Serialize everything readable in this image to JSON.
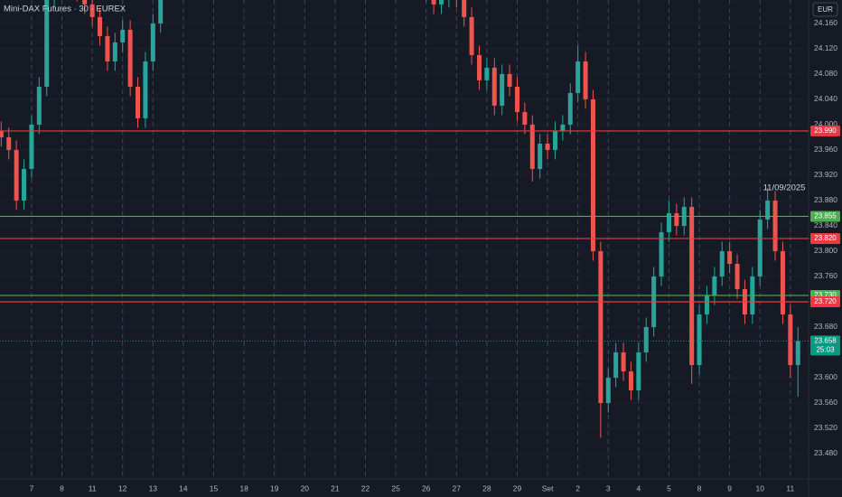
{
  "chart_data": {
    "type": "candlestick",
    "title": "Mini-DAX Futures · 30 · EUREX",
    "currency": "EUR",
    "annotation": "11/09/2025",
    "xlim": [
      -1.04,
      25.6
    ],
    "ylim": [
      23440,
      24197
    ],
    "xticks": [
      {
        "value": 0,
        "label": "7"
      },
      {
        "value": 1,
        "label": "8"
      },
      {
        "value": 2,
        "label": "11"
      },
      {
        "value": 3,
        "label": "12"
      },
      {
        "value": 4,
        "label": "13"
      },
      {
        "value": 5,
        "label": "14"
      },
      {
        "value": 6,
        "label": "15"
      },
      {
        "value": 7,
        "label": "18"
      },
      {
        "value": 8,
        "label": "19"
      },
      {
        "value": 9,
        "label": "20"
      },
      {
        "value": 10,
        "label": "21"
      },
      {
        "value": 11,
        "label": "22"
      },
      {
        "value": 12,
        "label": "25"
      },
      {
        "value": 13,
        "label": "26"
      },
      {
        "value": 14,
        "label": "27"
      },
      {
        "value": 15,
        "label": "28"
      },
      {
        "value": 16,
        "label": "29"
      },
      {
        "value": 17,
        "label": "Set"
      },
      {
        "value": 18,
        "label": "2"
      },
      {
        "value": 19,
        "label": "3"
      },
      {
        "value": 20,
        "label": "4"
      },
      {
        "value": 21,
        "label": "5"
      },
      {
        "value": 22,
        "label": "8"
      },
      {
        "value": 23,
        "label": "9"
      },
      {
        "value": 24,
        "label": "10"
      },
      {
        "value": 25,
        "label": "11"
      }
    ],
    "yticks": [
      {
        "value": 24160,
        "label": "24.160"
      },
      {
        "value": 24120,
        "label": "24.120"
      },
      {
        "value": 24080,
        "label": "24.080"
      },
      {
        "value": 24040,
        "label": "24.040"
      },
      {
        "value": 24000,
        "label": "24.000"
      },
      {
        "value": 23960,
        "label": "23.960"
      },
      {
        "value": 23920,
        "label": "23.920"
      },
      {
        "value": 23880,
        "label": "23.880"
      },
      {
        "value": 23840,
        "label": "23.840"
      },
      {
        "value": 23800,
        "label": "23.800"
      },
      {
        "value": 23760,
        "label": "23.760"
      },
      {
        "value": 23720,
        "label": "23.720"
      },
      {
        "value": 23680,
        "label": "23.680"
      },
      {
        "value": 23640,
        "label": "23.640"
      },
      {
        "value": 23600,
        "label": "23.600"
      },
      {
        "value": 23560,
        "label": "23.560"
      },
      {
        "value": 23520,
        "label": "23.520"
      },
      {
        "value": 23480,
        "label": "23.480"
      }
    ],
    "up_color": "#26a69a",
    "down_color": "#ef5350",
    "x": [
      -1,
      -0.75,
      -0.5,
      -0.25,
      0,
      0.25,
      0.5,
      0.75,
      1,
      1.25,
      1.5,
      1.75,
      2,
      2.25,
      2.5,
      2.75,
      3,
      3.25,
      3.5,
      3.75,
      4,
      4.25,
      13,
      13.25,
      13.5,
      13.75,
      14,
      14.25,
      14.5,
      14.75,
      15,
      15.25,
      15.5,
      15.75,
      16,
      16.25,
      16.5,
      16.75,
      17,
      17.25,
      17.5,
      17.75,
      18,
      18.25,
      18.5,
      18.75,
      19,
      19.25,
      19.5,
      19.75,
      20,
      20.25,
      20.5,
      20.75,
      21,
      21.25,
      21.5,
      21.75,
      22,
      22.25,
      22.5,
      22.75,
      23,
      23.25,
      23.5,
      23.75,
      24,
      24.25,
      24.5,
      24.75,
      25,
      25.25
    ],
    "open": [
      23990,
      23980,
      23960,
      23880,
      23930,
      24000,
      24060,
      24200,
      24230,
      24250,
      24220,
      24210,
      24190,
      24170,
      24140,
      24100,
      24130,
      24150,
      24060,
      24010,
      24100,
      24160,
      24210,
      24230,
      24190,
      24200,
      24240,
      24200,
      24170,
      24110,
      24070,
      24090,
      24030,
      24080,
      24060,
      24020,
      24000,
      23930,
      23970,
      23960,
      23990,
      24000,
      24050,
      24100,
      24040,
      23800,
      23560,
      23600,
      23640,
      23610,
      23580,
      23640,
      23680,
      23760,
      23830,
      23860,
      23840,
      23870,
      23620,
      23700,
      23730,
      23760,
      23800,
      23780,
      23740,
      23700,
      23760,
      23850,
      23880,
      23800,
      23700,
      23620
    ],
    "high": [
      24005,
      23995,
      23975,
      23945,
      24015,
      24075,
      24215,
      24245,
      24265,
      24265,
      24235,
      24225,
      24205,
      24185,
      24155,
      24145,
      24165,
      24165,
      24075,
      24115,
      24175,
      24235,
      24245,
      24245,
      24215,
      24255,
      24255,
      24215,
      24185,
      24125,
      24105,
      24105,
      24095,
      24095,
      24075,
      24035,
      24015,
      23985,
      23985,
      24005,
      24015,
      24065,
      24125,
      24115,
      24055,
      23815,
      23615,
      23655,
      23655,
      23625,
      23655,
      23695,
      23775,
      23845,
      23880,
      23875,
      23885,
      23885,
      23715,
      23745,
      23775,
      23815,
      23815,
      23795,
      23755,
      23775,
      23865,
      23900,
      23895,
      23815,
      23715,
      23680
    ],
    "low": [
      23965,
      23945,
      23865,
      23865,
      23915,
      23985,
      24045,
      24185,
      24215,
      24205,
      24195,
      24175,
      24155,
      24125,
      24085,
      24085,
      24115,
      24045,
      23995,
      23995,
      24085,
      24145,
      24195,
      24175,
      24175,
      24185,
      24185,
      24155,
      24095,
      24055,
      24055,
      24015,
      24015,
      24045,
      24005,
      23985,
      23910,
      23915,
      23945,
      23945,
      23975,
      23985,
      24035,
      24025,
      23785,
      23505,
      23545,
      23585,
      23595,
      23565,
      23565,
      23625,
      23665,
      23745,
      23815,
      23825,
      23825,
      23590,
      23605,
      23685,
      23715,
      23745,
      23765,
      23725,
      23685,
      23685,
      23745,
      23835,
      23785,
      23685,
      23600,
      23570
    ],
    "close": [
      23980,
      23960,
      23880,
      23930,
      24000,
      24060,
      24200,
      24230,
      24250,
      24220,
      24210,
      24190,
      24170,
      24140,
      24100,
      24130,
      24150,
      24060,
      24010,
      24100,
      24160,
      24220,
      24230,
      24190,
      24200,
      24240,
      24200,
      24170,
      24110,
      24070,
      24090,
      24030,
      24080,
      24060,
      24020,
      24000,
      23930,
      23970,
      23960,
      23990,
      24000,
      24050,
      24100,
      24040,
      23800,
      23560,
      23600,
      23640,
      23610,
      23580,
      23640,
      23680,
      23760,
      23830,
      23860,
      23840,
      23870,
      23620,
      23700,
      23730,
      23760,
      23800,
      23780,
      23740,
      23700,
      23760,
      23850,
      23880,
      23800,
      23700,
      23620,
      23658
    ],
    "levels": {
      "values": [
        23990,
        23855,
        23820,
        23730,
        23720
      ],
      "value_labels": [
        "23.990",
        "23.855",
        "23.820",
        "23.730",
        "23.720"
      ],
      "colors": [
        "#f23645",
        "#4caf50",
        "#f23645",
        "#4caf50",
        "#f23645"
      ]
    },
    "last_price": {
      "value": 23658,
      "label": "23.658",
      "countdown": "25:03",
      "color": "#089981"
    }
  }
}
